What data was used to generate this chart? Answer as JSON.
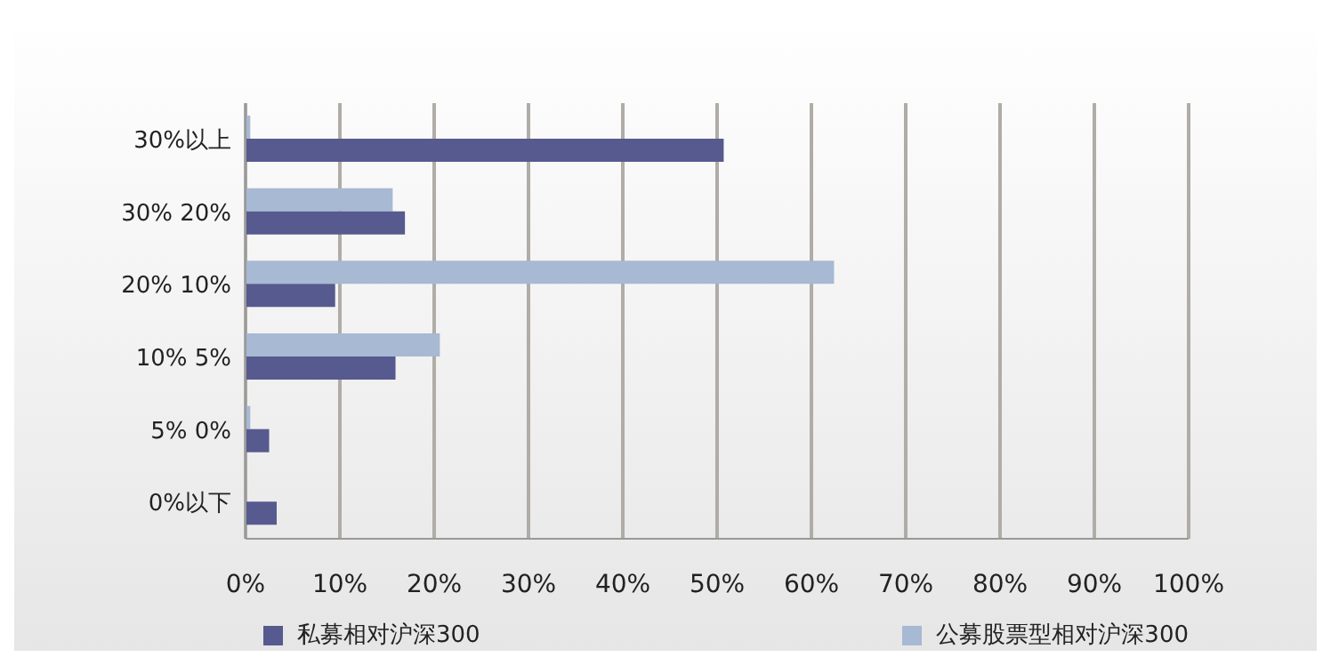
{
  "chart_data": {
    "type": "bar",
    "orientation": "horizontal",
    "categories": [
      "30%以上",
      "30%  20%",
      "20%  10%",
      "10%  5%",
      "5%  0%",
      "0%以下"
    ],
    "series": [
      {
        "name": "私募相对沪深300",
        "color": "#565a8e",
        "values": [
          50.7,
          16.9,
          9.5,
          15.9,
          2.5,
          3.3
        ]
      },
      {
        "name": "公募股票型相对沪深300",
        "color": "#a7b9d3",
        "values": [
          0.5,
          15.6,
          62.4,
          20.6,
          0.5,
          0
        ]
      }
    ],
    "xlim": [
      0,
      100
    ],
    "xticks": [
      {
        "value": 0,
        "label": "0%"
      },
      {
        "value": 10,
        "label": "10%"
      },
      {
        "value": 20,
        "label": "20%"
      },
      {
        "value": 30,
        "label": "30%"
      },
      {
        "value": 40,
        "label": "40%"
      },
      {
        "value": 50,
        "label": "50%"
      },
      {
        "value": 60,
        "label": "60%"
      },
      {
        "value": 70,
        "label": "70%"
      },
      {
        "value": 80,
        "label": "80%"
      },
      {
        "value": 90,
        "label": "90%"
      },
      {
        "value": 100,
        "label": "100%"
      }
    ],
    "grid": "x",
    "legend": "bottom"
  }
}
